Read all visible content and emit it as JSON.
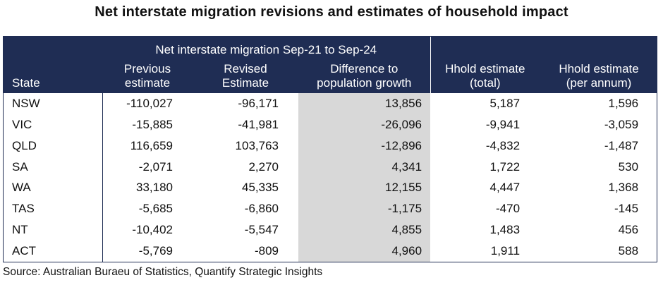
{
  "title": "Net interstate migration revisions and estimates of household impact",
  "table": {
    "group_header": "Net interstate migration Sep-21 to Sep-24",
    "columns": [
      {
        "line1": "",
        "line2": "State"
      },
      {
        "line1": "Previous",
        "line2": "estimate"
      },
      {
        "line1": "Revised",
        "line2": "Estimate"
      },
      {
        "line1": "Difference to",
        "line2": "population growth"
      },
      {
        "line1": "Hhold estimate",
        "line2": "(total)"
      },
      {
        "line1": "Hhold estimate",
        "line2": "(per annum)"
      }
    ],
    "rows": [
      {
        "state": "NSW",
        "previous": "-110,027",
        "revised": "-96,171",
        "difference": "13,856",
        "hhold_total": "5,187",
        "hhold_pa": "1,596"
      },
      {
        "state": "VIC",
        "previous": "-15,885",
        "revised": "-41,981",
        "difference": "-26,096",
        "hhold_total": "-9,941",
        "hhold_pa": "-3,059"
      },
      {
        "state": "QLD",
        "previous": "116,659",
        "revised": "103,763",
        "difference": "-12,896",
        "hhold_total": "-4,832",
        "hhold_pa": "-1,487"
      },
      {
        "state": "SA",
        "previous": "-2,071",
        "revised": "2,270",
        "difference": "4,341",
        "hhold_total": "1,722",
        "hhold_pa": "530"
      },
      {
        "state": "WA",
        "previous": "33,180",
        "revised": "45,335",
        "difference": "12,155",
        "hhold_total": "4,447",
        "hhold_pa": "1,368"
      },
      {
        "state": "TAS",
        "previous": "-5,685",
        "revised": "-6,860",
        "difference": "-1,175",
        "hhold_total": "-470",
        "hhold_pa": "-145"
      },
      {
        "state": "NT",
        "previous": "-10,402",
        "revised": "-5,547",
        "difference": "4,855",
        "hhold_total": "1,483",
        "hhold_pa": "456"
      },
      {
        "state": "ACT",
        "previous": "-5,769",
        "revised": "-809",
        "difference": "4,960",
        "hhold_total": "1,911",
        "hhold_pa": "588"
      }
    ]
  },
  "source": "Source: Australian Buraeu of Statistics, Quantify Strategic Insights",
  "colors": {
    "header_bg": "#1f2d54",
    "header_text": "#ffffff",
    "highlight_column": "#d8d8d8"
  },
  "chart_data": {
    "type": "table",
    "title": "Net interstate migration revisions and estimates of household impact",
    "group_header": "Net interstate migration Sep-21 to Sep-24",
    "columns": [
      "State",
      "Previous estimate",
      "Revised Estimate",
      "Difference to population growth",
      "Hhold estimate (total)",
      "Hhold estimate (per annum)"
    ],
    "rows": [
      [
        "NSW",
        -110027,
        -96171,
        13856,
        5187,
        1596
      ],
      [
        "VIC",
        -15885,
        -41981,
        -26096,
        -9941,
        -3059
      ],
      [
        "QLD",
        116659,
        103763,
        -12896,
        -4832,
        -1487
      ],
      [
        "SA",
        -2071,
        2270,
        4341,
        1722,
        530
      ],
      [
        "WA",
        33180,
        45335,
        12155,
        4447,
        1368
      ],
      [
        "TAS",
        -5685,
        -6860,
        -1175,
        -470,
        -145
      ],
      [
        "NT",
        -10402,
        -5547,
        4855,
        1483,
        456
      ],
      [
        "ACT",
        -5769,
        -809,
        4960,
        1911,
        588
      ]
    ]
  }
}
